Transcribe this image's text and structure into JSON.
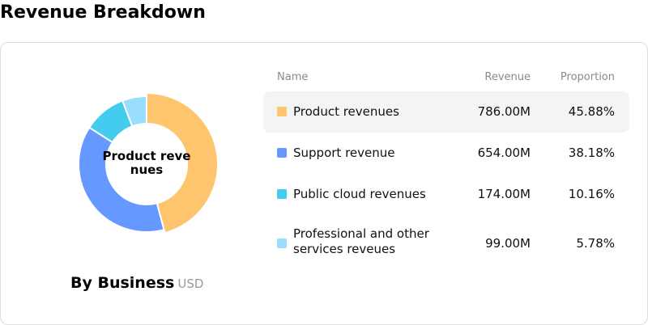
{
  "page_title": "Revenue Breakdown",
  "chart_data": {
    "type": "pie",
    "style": "donut",
    "title": "By Business",
    "unit": "USD",
    "center_label": "Product revenues",
    "columns": {
      "name": "Name",
      "revenue": "Revenue",
      "proportion": "Proportion"
    },
    "highlighted_index": 0,
    "slices": [
      {
        "label": "Product revenues",
        "value": 786.0,
        "revenue_text": "786.00M",
        "proportion_text": "45.88%",
        "color": "#ffc46e"
      },
      {
        "label": "Support revenue",
        "value": 654.0,
        "revenue_text": "654.00M",
        "proportion_text": "38.18%",
        "color": "#6699ff"
      },
      {
        "label": "Public cloud revenues",
        "value": 174.0,
        "revenue_text": "174.00M",
        "proportion_text": "10.16%",
        "color": "#44ccee"
      },
      {
        "label": "Professional and other services reveues",
        "value": 99.0,
        "revenue_text": "99.00M",
        "proportion_text": "5.78%",
        "color": "#99ddff"
      }
    ]
  }
}
